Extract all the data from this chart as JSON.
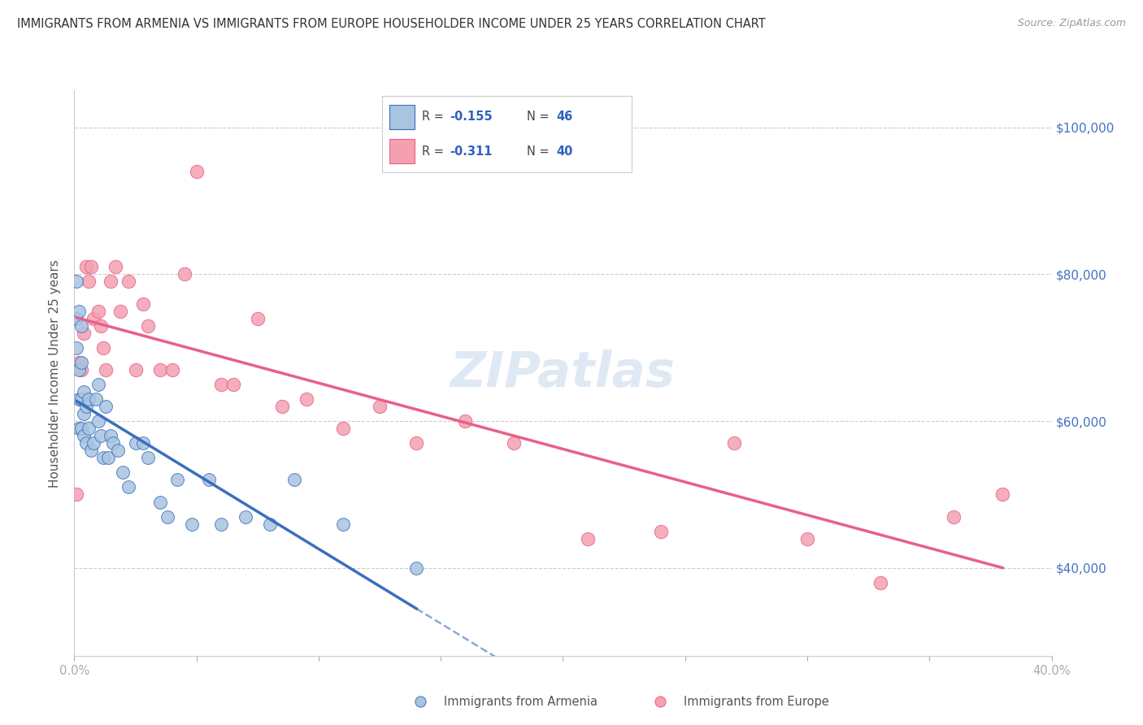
{
  "title": "IMMIGRANTS FROM ARMENIA VS IMMIGRANTS FROM EUROPE HOUSEHOLDER INCOME UNDER 25 YEARS CORRELATION CHART",
  "source": "Source: ZipAtlas.com",
  "ylabel": "Householder Income Under 25 years",
  "xlim": [
    0.0,
    0.4
  ],
  "ylim": [
    28000,
    105000
  ],
  "color_armenia": "#a8c4e0",
  "color_europe": "#f4a0b0",
  "color_line_armenia": "#3a6fbd",
  "color_line_europe": "#e8608a",
  "color_axis_right": "#4472c4",
  "background_color": "#ffffff",
  "armenia_x": [
    0.001,
    0.001,
    0.001,
    0.002,
    0.002,
    0.002,
    0.002,
    0.003,
    0.003,
    0.003,
    0.003,
    0.004,
    0.004,
    0.004,
    0.005,
    0.005,
    0.006,
    0.006,
    0.007,
    0.008,
    0.009,
    0.01,
    0.01,
    0.011,
    0.012,
    0.013,
    0.014,
    0.015,
    0.016,
    0.018,
    0.02,
    0.022,
    0.025,
    0.028,
    0.03,
    0.035,
    0.038,
    0.042,
    0.048,
    0.055,
    0.06,
    0.07,
    0.08,
    0.09,
    0.11,
    0.14
  ],
  "armenia_y": [
    79000,
    74000,
    70000,
    75000,
    67000,
    63000,
    59000,
    73000,
    68000,
    63000,
    59000,
    64000,
    61000,
    58000,
    62000,
    57000,
    63000,
    59000,
    56000,
    57000,
    63000,
    65000,
    60000,
    58000,
    55000,
    62000,
    55000,
    58000,
    57000,
    56000,
    53000,
    51000,
    57000,
    57000,
    55000,
    49000,
    47000,
    52000,
    46000,
    52000,
    46000,
    47000,
    46000,
    52000,
    46000,
    40000
  ],
  "europe_x": [
    0.001,
    0.002,
    0.003,
    0.004,
    0.005,
    0.006,
    0.007,
    0.008,
    0.01,
    0.011,
    0.012,
    0.013,
    0.015,
    0.017,
    0.019,
    0.022,
    0.025,
    0.028,
    0.03,
    0.035,
    0.04,
    0.045,
    0.05,
    0.06,
    0.065,
    0.075,
    0.085,
    0.095,
    0.11,
    0.125,
    0.14,
    0.16,
    0.18,
    0.21,
    0.24,
    0.27,
    0.3,
    0.33,
    0.36,
    0.38
  ],
  "europe_y": [
    50000,
    68000,
    67000,
    72000,
    81000,
    79000,
    81000,
    74000,
    75000,
    73000,
    70000,
    67000,
    79000,
    81000,
    75000,
    79000,
    67000,
    76000,
    73000,
    67000,
    67000,
    80000,
    94000,
    65000,
    65000,
    74000,
    62000,
    63000,
    59000,
    62000,
    57000,
    60000,
    57000,
    44000,
    45000,
    57000,
    44000,
    38000,
    47000,
    50000
  ]
}
